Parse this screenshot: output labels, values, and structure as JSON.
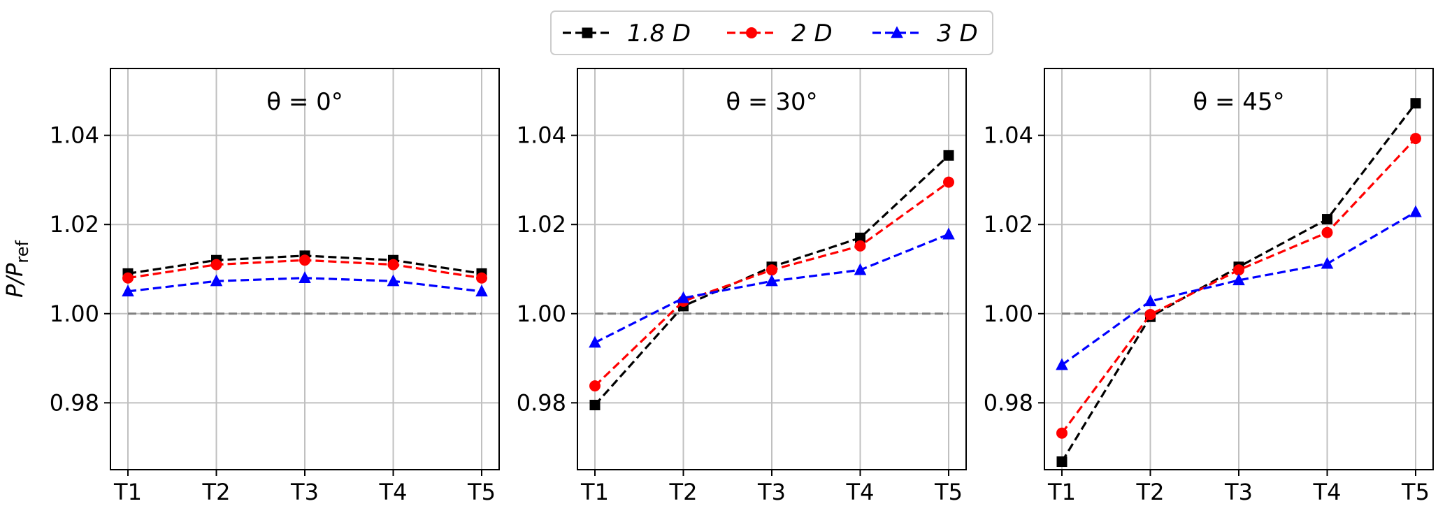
{
  "chart_data": [
    {
      "type": "line",
      "title": "θ = 0°",
      "xlabel": "",
      "ylabel": "P/Pref",
      "categories": [
        "T1",
        "T2",
        "T3",
        "T4",
        "T5"
      ],
      "ylim": [
        0.965,
        1.055
      ],
      "yticks": [
        "0.98",
        "1.00",
        "1.02",
        "1.04"
      ],
      "grid": true,
      "reference_line": 1.0,
      "series": [
        {
          "name": "1.8 D",
          "color": "#000000",
          "marker": "square",
          "values": [
            1.009,
            1.012,
            1.013,
            1.012,
            1.009
          ]
        },
        {
          "name": "2 D",
          "color": "#ff0000",
          "marker": "circle",
          "values": [
            1.008,
            1.011,
            1.012,
            1.011,
            1.008
          ]
        },
        {
          "name": "3 D",
          "color": "#0000ff",
          "marker": "triangle",
          "values": [
            1.005,
            1.0073,
            1.008,
            1.0073,
            1.005
          ]
        }
      ]
    },
    {
      "type": "line",
      "title": "θ = 30°",
      "xlabel": "",
      "ylabel": "",
      "categories": [
        "T1",
        "T2",
        "T3",
        "T4",
        "T5"
      ],
      "ylim": [
        0.965,
        1.055
      ],
      "yticks": [
        "0.98",
        "1.00",
        "1.02",
        "1.04"
      ],
      "grid": true,
      "reference_line": 1.0,
      "series": [
        {
          "name": "1.8 D",
          "color": "#000000",
          "marker": "square",
          "values": [
            0.9795,
            1.0017,
            1.0105,
            1.017,
            1.0355
          ]
        },
        {
          "name": "2 D",
          "color": "#ff0000",
          "marker": "circle",
          "values": [
            0.9838,
            1.0028,
            1.0098,
            1.0152,
            1.0295
          ]
        },
        {
          "name": "3 D",
          "color": "#0000ff",
          "marker": "triangle",
          "values": [
            0.9935,
            1.0035,
            1.0073,
            1.0098,
            1.0178
          ]
        }
      ]
    },
    {
      "type": "line",
      "title": "θ = 45°",
      "xlabel": "",
      "ylabel": "",
      "categories": [
        "T1",
        "T2",
        "T3",
        "T4",
        "T5"
      ],
      "ylim": [
        0.965,
        1.055
      ],
      "yticks": [
        "0.98",
        "1.00",
        "1.02",
        "1.04"
      ],
      "grid": true,
      "reference_line": 1.0,
      "series": [
        {
          "name": "1.8 D",
          "color": "#000000",
          "marker": "square",
          "values": [
            0.9668,
            0.9993,
            1.0105,
            1.0212,
            1.0472
          ]
        },
        {
          "name": "2 D",
          "color": "#ff0000",
          "marker": "circle",
          "values": [
            0.9732,
            0.9998,
            1.0098,
            1.0182,
            1.0393
          ]
        },
        {
          "name": "3 D",
          "color": "#0000ff",
          "marker": "triangle",
          "values": [
            0.9885,
            1.0028,
            1.0075,
            1.0112,
            1.0228
          ]
        }
      ]
    }
  ],
  "legend": {
    "placement": "top-center",
    "entries": [
      {
        "label": "1.8 D",
        "color": "#000000",
        "marker": "square"
      },
      {
        "label": "2 D",
        "color": "#ff0000",
        "marker": "circle"
      },
      {
        "label": "3 D",
        "color": "#0000ff",
        "marker": "triangle"
      }
    ]
  },
  "colors": {
    "grid": "#c0c0c0",
    "reference_line": "#808080",
    "axis": "#000000"
  }
}
